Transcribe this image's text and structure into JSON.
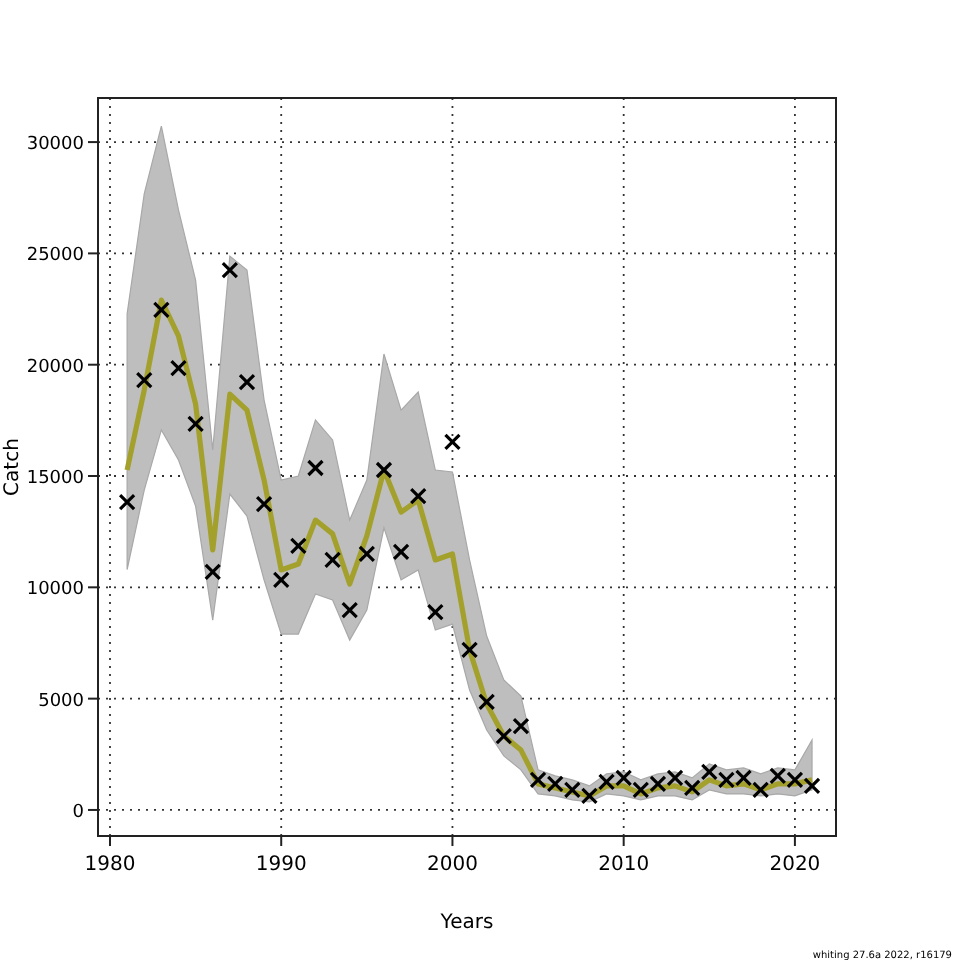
{
  "chart_data": {
    "type": "line",
    "xlabel": "Years",
    "ylabel": "Catch",
    "x": [
      1981,
      1982,
      1983,
      1984,
      1985,
      1986,
      1987,
      1988,
      1989,
      1990,
      1991,
      1992,
      1993,
      1994,
      1995,
      1996,
      1997,
      1998,
      1999,
      2000,
      2001,
      2002,
      2003,
      2004,
      2005,
      2006,
      2007,
      2008,
      2009,
      2010,
      2011,
      2012,
      2013,
      2014,
      2015,
      2016,
      2017,
      2018,
      2019,
      2020,
      2021
    ],
    "series": [
      {
        "color": "#a3a02c",
        "marker": "none",
        "line_style": "solid",
        "values": [
          15270,
          18860,
          22900,
          21290,
          18230,
          11680,
          18680,
          17960,
          14820,
          10780,
          11050,
          13020,
          12400,
          10150,
          12310,
          15270,
          13380,
          13920,
          11230,
          11500,
          7190,
          4760,
          3320,
          2690,
          1170,
          990,
          810,
          630,
          1080,
          1080,
          720,
          990,
          1080,
          810,
          1350,
          1080,
          1170,
          900,
          1170,
          1170,
          1350
        ],
        "lower": [
          10800,
          14370,
          17070,
          15720,
          13650,
          8530,
          14190,
          13200,
          10330,
          7900,
          7900,
          9700,
          9430,
          7630,
          8980,
          12670,
          10330,
          10780,
          8080,
          8350,
          5390,
          3590,
          2430,
          1800,
          720,
          630,
          450,
          360,
          720,
          630,
          450,
          630,
          630,
          450,
          900,
          720,
          720,
          630,
          720,
          630,
          900
        ],
        "upper": [
          22280,
          27670,
          30720,
          26950,
          23800,
          16170,
          24880,
          24250,
          18410,
          14820,
          15000,
          17520,
          16620,
          13020,
          14820,
          20480,
          17960,
          18770,
          15270,
          15180,
          11230,
          7810,
          5840,
          5120,
          1800,
          1530,
          1350,
          1080,
          1620,
          1710,
          1350,
          1620,
          1710,
          1440,
          2070,
          1800,
          1890,
          1620,
          1890,
          1800,
          3140
        ]
      },
      {
        "type": "scatter",
        "color": "#000000",
        "marker": "cross",
        "values": [
          13830,
          19310,
          22460,
          19850,
          17340,
          10690,
          24250,
          19220,
          13740,
          10330,
          11860,
          15360,
          11230,
          8980,
          11500,
          15270,
          11590,
          14100,
          8890,
          16530,
          7190,
          4850,
          3320,
          3770,
          1350,
          1170,
          900,
          630,
          1260,
          1440,
          900,
          1170,
          1440,
          990,
          1710,
          1350,
          1440,
          900,
          1530,
          1350,
          1080
        ]
      }
    ],
    "xlim": [
      1979.3,
      2022.4
    ],
    "ylim": [
      -1170,
      31980
    ],
    "xticks": [
      1980,
      1990,
      2000,
      2010,
      2020
    ],
    "yticks": [
      0,
      5000,
      10000,
      15000,
      20000,
      25000,
      30000
    ],
    "grid": true,
    "annotations": [
      "whiting 27.6a 2022, r16179"
    ]
  }
}
